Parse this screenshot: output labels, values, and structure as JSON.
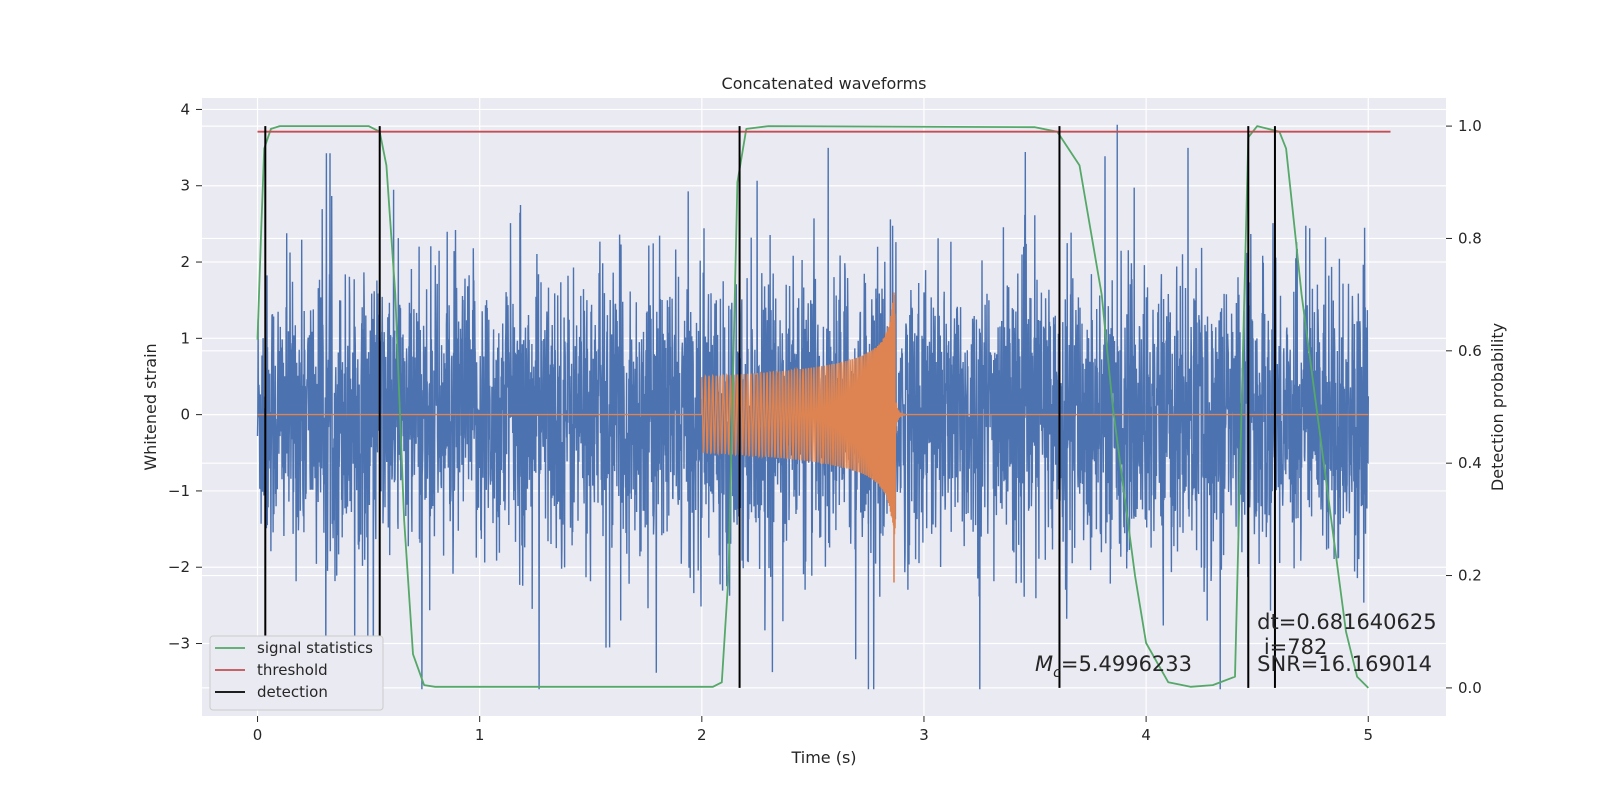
{
  "chart_data": {
    "type": "line",
    "title": "Concatenated waveforms",
    "xlabel": "Time (s)",
    "ylabel_left": "Whitened strain",
    "ylabel_right": "Detection probability",
    "xlim": [
      -0.25,
      5.35
    ],
    "ylim_left": [
      -3.95,
      4.15
    ],
    "ylim_right": [
      -0.05,
      1.05
    ],
    "x_ticks": [
      0,
      1,
      2,
      3,
      4,
      5
    ],
    "x_tick_labels": [
      "0",
      "1",
      "2",
      "3",
      "4",
      "5"
    ],
    "y_left_ticks": [
      -3,
      -2,
      -1,
      0,
      1,
      2,
      3,
      4
    ],
    "y_left_tick_labels": [
      "−3",
      "−2",
      "−1",
      "0",
      "1",
      "2",
      "3",
      "4"
    ],
    "y_right_ticks": [
      0.0,
      0.2,
      0.4,
      0.6,
      0.8,
      1.0
    ],
    "y_right_tick_labels": [
      "0.0",
      "0.2",
      "0.4",
      "0.6",
      "0.8",
      "1.0"
    ],
    "grid": true,
    "legend_position": "lower-left",
    "noise_series": {
      "x_range": [
        0,
        5
      ],
      "typical_amplitude": 1.0,
      "peak_min": -3.6,
      "peak_max": 3.8,
      "color": "#4c72b0"
    },
    "chirp_series": {
      "x_range": [
        2.0,
        2.87
      ],
      "start_amplitude": 0.5,
      "peak_amplitude": 1.6,
      "trough_amplitude": -2.2,
      "color": "#dd8452"
    },
    "series": [
      {
        "name": "signal statistics",
        "color": "#55a868",
        "axis": "right",
        "x": [
          0.0,
          0.015,
          0.03,
          0.06,
          0.1,
          0.5,
          0.55,
          0.58,
          0.62,
          0.66,
          0.7,
          0.75,
          0.8,
          2.05,
          2.09,
          2.12,
          2.16,
          2.2,
          2.3,
          3.5,
          3.6,
          3.7,
          3.8,
          3.85,
          3.9,
          3.95,
          4.0,
          4.1,
          4.2,
          4.3,
          4.4,
          4.43,
          4.46,
          4.5,
          4.6,
          4.63,
          4.66,
          4.7,
          4.75,
          4.8,
          4.85,
          4.9,
          4.95,
          5.0
        ],
        "values": [
          0.62,
          0.8,
          0.96,
          0.995,
          1.0,
          1.0,
          0.99,
          0.93,
          0.7,
          0.3,
          0.06,
          0.005,
          0.002,
          0.002,
          0.01,
          0.2,
          0.9,
          0.995,
          1.0,
          0.998,
          0.99,
          0.93,
          0.7,
          0.5,
          0.35,
          0.2,
          0.08,
          0.01,
          0.002,
          0.005,
          0.02,
          0.5,
          0.98,
          1.0,
          0.99,
          0.96,
          0.85,
          0.7,
          0.55,
          0.4,
          0.25,
          0.1,
          0.02,
          0.0
        ]
      },
      {
        "name": "threshold",
        "color": "#c44e52",
        "axis": "right",
        "x": [
          0.0,
          5.1
        ],
        "values": [
          0.99,
          0.99
        ]
      }
    ],
    "detection": {
      "name": "detection",
      "color": "#000000",
      "axis": "right",
      "x": [
        0.035,
        0.55,
        2.17,
        3.61,
        4.46,
        4.58
      ],
      "range": [
        0.0,
        1.0
      ]
    },
    "annotations": [
      {
        "text": "Mc=5.4996233",
        "main": "M",
        "sub": "c",
        "rest": "=5.4996233",
        "x": 3.5,
        "y_right": 0.03
      },
      {
        "text": "dt=0.681640625",
        "x": 4.5,
        "y_right": 0.105
      },
      {
        "text": " i=782",
        "x": 4.5,
        "y_right": 0.06
      },
      {
        "text": "SNR=16.169014",
        "x": 4.5,
        "y_right": 0.03
      }
    ]
  }
}
